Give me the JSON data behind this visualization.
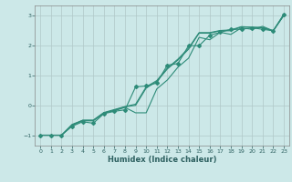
{
  "xlabel": "Humidex (Indice chaleur)",
  "bg_color": "#cce8e8",
  "line_color": "#2d8b78",
  "grid_color": "#b0c8c8",
  "xlim": [
    -0.5,
    23.5
  ],
  "ylim": [
    -1.35,
    3.35
  ],
  "yticks": [
    -1,
    0,
    1,
    2,
    3
  ],
  "xticks": [
    0,
    1,
    2,
    3,
    4,
    5,
    6,
    7,
    8,
    9,
    10,
    11,
    12,
    13,
    14,
    15,
    16,
    17,
    18,
    19,
    20,
    21,
    22,
    23
  ],
  "line_main_x": [
    0,
    1,
    2,
    3,
    4,
    5,
    6,
    7,
    8,
    9,
    10,
    11,
    12,
    13,
    14,
    15,
    16,
    17,
    18,
    19,
    20,
    21,
    22,
    23
  ],
  "line_main_y": [
    -1.0,
    -1.0,
    -1.0,
    -0.7,
    -0.55,
    -0.6,
    -0.28,
    -0.2,
    -0.15,
    0.62,
    0.65,
    0.75,
    1.35,
    1.4,
    2.0,
    2.0,
    2.35,
    2.45,
    2.55,
    2.55,
    2.6,
    2.55,
    2.5,
    3.05
  ],
  "line2_x": [
    0,
    1,
    2,
    3,
    4,
    5,
    6,
    7,
    8,
    9,
    10,
    11,
    12,
    13,
    14,
    15,
    16,
    17,
    18,
    19,
    20,
    21,
    22,
    23
  ],
  "line2_y": [
    -1.0,
    -1.0,
    -1.0,
    -0.68,
    -0.5,
    -0.5,
    -0.25,
    -0.18,
    -0.07,
    -0.25,
    -0.25,
    0.55,
    0.85,
    1.28,
    1.58,
    2.28,
    2.2,
    2.45,
    2.38,
    2.6,
    2.55,
    2.65,
    2.5,
    3.05
  ],
  "line3_x": [
    0,
    1,
    2,
    3,
    4,
    5,
    6,
    7,
    8,
    9,
    10,
    11,
    12,
    13,
    14,
    15,
    16,
    17,
    18,
    19,
    20,
    21,
    22,
    23
  ],
  "line3_y": [
    -1.0,
    -1.0,
    -1.0,
    -0.65,
    -0.52,
    -0.52,
    -0.27,
    -0.16,
    -0.05,
    0.0,
    0.58,
    0.8,
    1.22,
    1.52,
    1.88,
    2.42,
    2.42,
    2.5,
    2.5,
    2.63,
    2.62,
    2.6,
    2.5,
    3.02
  ],
  "line4_x": [
    0,
    1,
    2,
    3,
    4,
    5,
    6,
    7,
    8,
    9,
    10,
    11,
    12,
    13,
    14,
    15,
    16,
    17,
    18,
    19,
    20,
    21,
    22,
    23
  ],
  "line4_y": [
    -1.0,
    -1.0,
    -1.0,
    -0.64,
    -0.5,
    -0.5,
    -0.24,
    -0.14,
    -0.04,
    0.04,
    0.62,
    0.83,
    1.25,
    1.55,
    1.92,
    2.44,
    2.44,
    2.51,
    2.53,
    2.64,
    2.62,
    2.61,
    2.5,
    3.01
  ]
}
